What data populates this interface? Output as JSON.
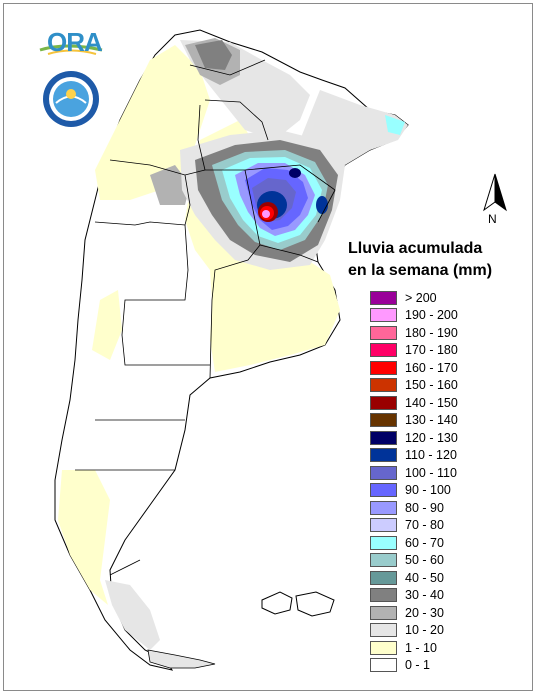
{
  "map": {
    "title_line1": "Lluvia acumulada",
    "title_line2": "en la semana (mm)",
    "north_label": "N",
    "logo_text": "ORA"
  },
  "legend": [
    {
      "label": "> 200",
      "color": "#990099"
    },
    {
      "label": "190 - 200",
      "color": "#ff99ff"
    },
    {
      "label": "180 - 190",
      "color": "#ff6699"
    },
    {
      "label": "170 - 180",
      "color": "#ff0066"
    },
    {
      "label": "160 - 170",
      "color": "#ff0000"
    },
    {
      "label": "150 - 160",
      "color": "#cc3300"
    },
    {
      "label": "140 - 150",
      "color": "#990000"
    },
    {
      "label": "130 - 140",
      "color": "#663300"
    },
    {
      "label": "120 - 130",
      "color": "#000066"
    },
    {
      "label": "110 - 120",
      "color": "#003399"
    },
    {
      "label": "100 - 110",
      "color": "#6666cc"
    },
    {
      "label": "90 - 100",
      "color": "#6666ff"
    },
    {
      "label": "80 - 90",
      "color": "#9999ff"
    },
    {
      "label": "70 - 80",
      "color": "#ccccff"
    },
    {
      "label": "60 - 70",
      "color": "#99ffff"
    },
    {
      "label": "50 - 60",
      "color": "#99cccc"
    },
    {
      "label": "40 - 50",
      "color": "#669999"
    },
    {
      "label": "30 - 40",
      "color": "#808080"
    },
    {
      "label": "20 - 30",
      "color": "#b2b2b2"
    },
    {
      "label": "10 - 20",
      "color": "#e6e6e6"
    },
    {
      "label": "1 - 10",
      "color": "#ffffcc"
    },
    {
      "label": "0 - 1",
      "color": "#ffffff"
    }
  ]
}
